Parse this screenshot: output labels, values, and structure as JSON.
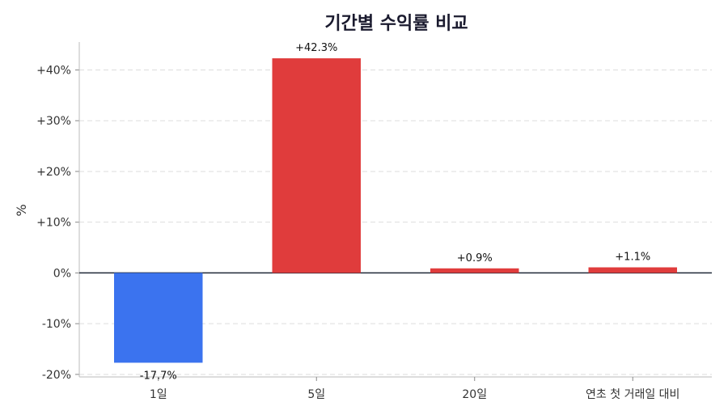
{
  "chart_data": {
    "type": "bar",
    "title": "기간별 수익률 비교",
    "xlabel": "",
    "ylabel": "%",
    "categories": [
      "1일",
      "5일",
      "20일",
      "연초 첫 거래일 대비"
    ],
    "values": [
      -17.7,
      42.3,
      0.9,
      1.1
    ],
    "value_labels": [
      "-17.7%",
      "+42.3%",
      "+0.9%",
      "+1.1%"
    ],
    "ylim": [
      -20.5,
      45.5
    ],
    "yticks": [
      -20,
      -10,
      0,
      10,
      20,
      30,
      40
    ],
    "ytick_labels": [
      "-20%",
      "-10%",
      "0%",
      "+10%",
      "+20%",
      "+30%",
      "+40%"
    ],
    "grid": true,
    "colors": {
      "positive": "#e03c3c",
      "negative": "#3b73ef"
    }
  }
}
